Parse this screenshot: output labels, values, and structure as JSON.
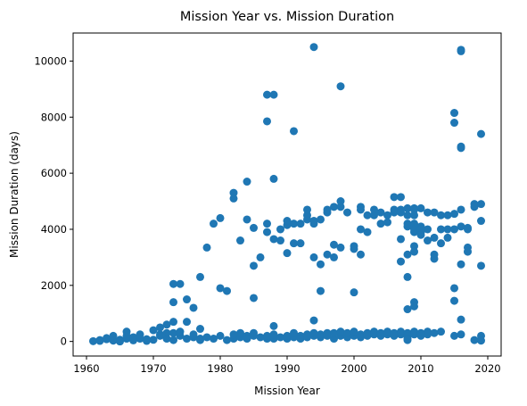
{
  "chart_data": {
    "type": "scatter",
    "title": "Mission Year vs. Mission Duration",
    "xlabel": "Mission Year",
    "ylabel": "Mission Duration (days)",
    "xlim": [
      1958,
      2022
    ],
    "ylim": [
      -520,
      11000
    ],
    "xticks": [
      1960,
      1970,
      1980,
      1990,
      2000,
      2010,
      2020
    ],
    "yticks": [
      0,
      2000,
      4000,
      6000,
      8000,
      10000
    ],
    "grid": false,
    "marker_color": "#1f77b4",
    "series": [
      {
        "points": [
          [
            1961,
            10
          ],
          [
            1962,
            50
          ],
          [
            1962,
            20
          ],
          [
            1963,
            80
          ],
          [
            1963,
            120
          ],
          [
            1964,
            30
          ],
          [
            1965,
            60
          ],
          [
            1965,
            0
          ],
          [
            1966,
            200
          ],
          [
            1966,
            350
          ],
          [
            1967,
            40
          ],
          [
            1968,
            100
          ],
          [
            1968,
            250
          ],
          [
            1969,
            20
          ],
          [
            1969,
            80
          ],
          [
            1970,
            60
          ],
          [
            1970,
            400
          ],
          [
            1971,
            250
          ],
          [
            1971,
            500
          ],
          [
            1972,
            300
          ],
          [
            1972,
            100
          ],
          [
            1973,
            50
          ],
          [
            1973,
            300
          ],
          [
            1974,
            200
          ],
          [
            1975,
            100
          ],
          [
            1976,
            150
          ],
          [
            1977,
            100
          ],
          [
            1977,
            50
          ],
          [
            1978,
            150
          ],
          [
            1979,
            100
          ],
          [
            1980,
            200
          ],
          [
            1981,
            50
          ],
          [
            1982,
            100
          ],
          [
            1982,
            250
          ],
          [
            1983,
            150
          ],
          [
            1983,
            300
          ],
          [
            1984,
            200
          ],
          [
            1984,
            100
          ],
          [
            1985,
            200
          ],
          [
            1985,
            300
          ],
          [
            1986,
            150
          ],
          [
            1987,
            100
          ],
          [
            1987,
            200
          ],
          [
            1988,
            100
          ],
          [
            1988,
            250
          ],
          [
            1989,
            150
          ],
          [
            1990,
            100
          ],
          [
            1990,
            200
          ],
          [
            1991,
            150
          ],
          [
            1991,
            300
          ],
          [
            1992,
            200
          ],
          [
            1992,
            100
          ],
          [
            1993,
            250
          ],
          [
            1993,
            150
          ],
          [
            1994,
            200
          ],
          [
            1994,
            300
          ],
          [
            1995,
            150
          ],
          [
            1995,
            250
          ],
          [
            1996,
            300
          ],
          [
            1996,
            200
          ],
          [
            1997,
            100
          ],
          [
            1997,
            300
          ],
          [
            1998,
            200
          ],
          [
            1998,
            350
          ],
          [
            1999,
            150
          ],
          [
            1999,
            300
          ],
          [
            2000,
            200
          ],
          [
            2000,
            350
          ],
          [
            2001,
            250
          ],
          [
            2001,
            150
          ],
          [
            2002,
            300
          ],
          [
            2002,
            200
          ],
          [
            2003,
            350
          ],
          [
            2003,
            250
          ],
          [
            2004,
            300
          ],
          [
            2004,
            200
          ],
          [
            2005,
            250
          ],
          [
            2005,
            350
          ],
          [
            2006,
            300
          ],
          [
            2006,
            200
          ],
          [
            2007,
            350
          ],
          [
            2007,
            250
          ],
          [
            2008,
            300
          ],
          [
            2008,
            200
          ],
          [
            2008,
            100
          ],
          [
            2009,
            350
          ],
          [
            2009,
            250
          ],
          [
            2010,
            300
          ],
          [
            2010,
            200
          ],
          [
            2011,
            350
          ],
          [
            2011,
            250
          ],
          [
            2012,
            300
          ],
          [
            2013,
            350
          ],
          [
            2016,
            250
          ],
          [
            2018,
            50
          ],
          [
            2019,
            200
          ],
          [
            2019,
            30
          ],
          [
            1964,
            200
          ],
          [
            1966,
            100
          ],
          [
            1967,
            150
          ],
          [
            1971,
            200
          ],
          [
            1972,
            600
          ],
          [
            1973,
            700
          ],
          [
            1974,
            350
          ],
          [
            1975,
            700
          ],
          [
            1976,
            250
          ],
          [
            1977,
            450
          ],
          [
            1988,
            550
          ],
          [
            1994,
            750
          ],
          [
            2008,
            50
          ],
          [
            2015,
            200
          ],
          [
            1973,
            1400
          ],
          [
            1973,
            2050
          ],
          [
            1974,
            2050
          ],
          [
            1975,
            1500
          ],
          [
            1976,
            1200
          ],
          [
            1977,
            2300
          ],
          [
            1978,
            3350
          ],
          [
            1979,
            4200
          ],
          [
            1980,
            4400
          ],
          [
            1980,
            1900
          ],
          [
            1981,
            1800
          ],
          [
            1982,
            5300
          ],
          [
            1982,
            5100
          ],
          [
            1983,
            3600
          ],
          [
            1984,
            5700
          ],
          [
            1984,
            4350
          ],
          [
            1985,
            2700
          ],
          [
            1985,
            1550
          ],
          [
            1985,
            4050
          ],
          [
            1986,
            3000
          ],
          [
            1987,
            3900
          ],
          [
            1987,
            4200
          ],
          [
            1987,
            7850
          ],
          [
            1987,
            8800
          ],
          [
            1988,
            8800
          ],
          [
            1988,
            5800
          ],
          [
            1988,
            3650
          ],
          [
            1989,
            3600
          ],
          [
            1989,
            4000
          ],
          [
            1990,
            3150
          ],
          [
            1990,
            4150
          ],
          [
            1990,
            4300
          ],
          [
            1991,
            3500
          ],
          [
            1991,
            4200
          ],
          [
            1991,
            7500
          ],
          [
            1992,
            3500
          ],
          [
            1992,
            4200
          ],
          [
            1993,
            4350
          ],
          [
            1993,
            4500
          ],
          [
            1993,
            4700
          ],
          [
            1994,
            4300
          ],
          [
            1994,
            3000
          ],
          [
            1994,
            4200
          ],
          [
            1994,
            10500
          ],
          [
            1995,
            2750
          ],
          [
            1995,
            1800
          ],
          [
            1995,
            4350
          ],
          [
            1996,
            3100
          ],
          [
            1996,
            4600
          ],
          [
            1996,
            4700
          ],
          [
            1997,
            3450
          ],
          [
            1997,
            4800
          ],
          [
            1997,
            3000
          ],
          [
            1998,
            9100
          ],
          [
            1998,
            4800
          ],
          [
            1998,
            3350
          ],
          [
            1998,
            5000
          ],
          [
            1999,
            4600
          ],
          [
            2000,
            3400
          ],
          [
            2000,
            3300
          ],
          [
            2000,
            1750
          ],
          [
            2001,
            3100
          ],
          [
            2001,
            4000
          ],
          [
            2001,
            4800
          ],
          [
            2001,
            4700
          ],
          [
            2002,
            3900
          ],
          [
            2002,
            4500
          ],
          [
            2003,
            4500
          ],
          [
            2003,
            4700
          ],
          [
            2004,
            4600
          ],
          [
            2004,
            4200
          ],
          [
            2005,
            4250
          ],
          [
            2005,
            4500
          ],
          [
            2006,
            4600
          ],
          [
            2006,
            5150
          ],
          [
            2006,
            4700
          ],
          [
            2007,
            5150
          ],
          [
            2007,
            4700
          ],
          [
            2007,
            3650
          ],
          [
            2007,
            2850
          ],
          [
            2007,
            4600
          ],
          [
            2008,
            4100
          ],
          [
            2008,
            3100
          ],
          [
            2008,
            2300
          ],
          [
            2008,
            1150
          ],
          [
            2008,
            4750
          ],
          [
            2008,
            4500
          ],
          [
            2008,
            4200
          ],
          [
            2009,
            4750
          ],
          [
            2009,
            4500
          ],
          [
            2009,
            4200
          ],
          [
            2009,
            3900
          ],
          [
            2009,
            1400
          ],
          [
            2009,
            1250
          ],
          [
            2009,
            4000
          ],
          [
            2009,
            4700
          ],
          [
            2009,
            3400
          ],
          [
            2009,
            3200
          ],
          [
            2010,
            4100
          ],
          [
            2010,
            3900
          ],
          [
            2010,
            4750
          ],
          [
            2010,
            4000
          ],
          [
            2010,
            3800
          ],
          [
            2011,
            4600
          ],
          [
            2011,
            3600
          ],
          [
            2011,
            4000
          ],
          [
            2012,
            4600
          ],
          [
            2012,
            3100
          ],
          [
            2012,
            2950
          ],
          [
            2012,
            3700
          ],
          [
            2013,
            4500
          ],
          [
            2013,
            4000
          ],
          [
            2013,
            3500
          ],
          [
            2014,
            4500
          ],
          [
            2014,
            4000
          ],
          [
            2014,
            3700
          ],
          [
            2015,
            4550
          ],
          [
            2015,
            4000
          ],
          [
            2015,
            8150
          ],
          [
            2015,
            7800
          ],
          [
            2015,
            1900
          ],
          [
            2015,
            1450
          ],
          [
            2016,
            10400
          ],
          [
            2016,
            10350
          ],
          [
            2016,
            6950
          ],
          [
            2016,
            6900
          ],
          [
            2016,
            4100
          ],
          [
            2016,
            2750
          ],
          [
            2016,
            780
          ],
          [
            2017,
            4050
          ],
          [
            2017,
            3350
          ],
          [
            2017,
            3200
          ],
          [
            2018,
            4900
          ],
          [
            2018,
            4800
          ],
          [
            2019,
            4900
          ],
          [
            2019,
            4300
          ],
          [
            2019,
            7400
          ],
          [
            2019,
            2700
          ],
          [
            2016,
            4700
          ],
          [
            2017,
            4000
          ]
        ]
      }
    ]
  }
}
